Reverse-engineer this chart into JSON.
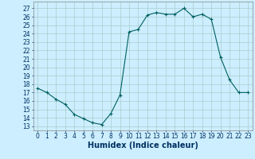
{
  "x": [
    0,
    1,
    2,
    3,
    4,
    5,
    6,
    7,
    8,
    9,
    10,
    11,
    12,
    13,
    14,
    15,
    16,
    17,
    18,
    19,
    20,
    21,
    22,
    23
  ],
  "y": [
    17.5,
    17.0,
    16.2,
    15.6,
    14.4,
    13.9,
    13.4,
    13.2,
    14.5,
    16.7,
    24.2,
    24.5,
    26.2,
    26.5,
    26.3,
    26.3,
    27.0,
    26.0,
    26.3,
    25.7,
    21.2,
    18.5,
    17.0,
    17.0
  ],
  "line_color": "#006060",
  "marker": "+",
  "bg_color": "#cceeff",
  "grid_color": "#aacccc",
  "xlabel": "Humidex (Indice chaleur)",
  "ylabel_ticks": [
    13,
    14,
    15,
    16,
    17,
    18,
    19,
    20,
    21,
    22,
    23,
    24,
    25,
    26,
    27
  ],
  "ylim": [
    12.5,
    27.8
  ],
  "xlim": [
    -0.5,
    23.5
  ],
  "xticks": [
    0,
    1,
    2,
    3,
    4,
    5,
    6,
    7,
    8,
    9,
    10,
    11,
    12,
    13,
    14,
    15,
    16,
    17,
    18,
    19,
    20,
    21,
    22,
    23
  ],
  "tick_fontsize": 5.5,
  "xlabel_fontsize": 7.0
}
